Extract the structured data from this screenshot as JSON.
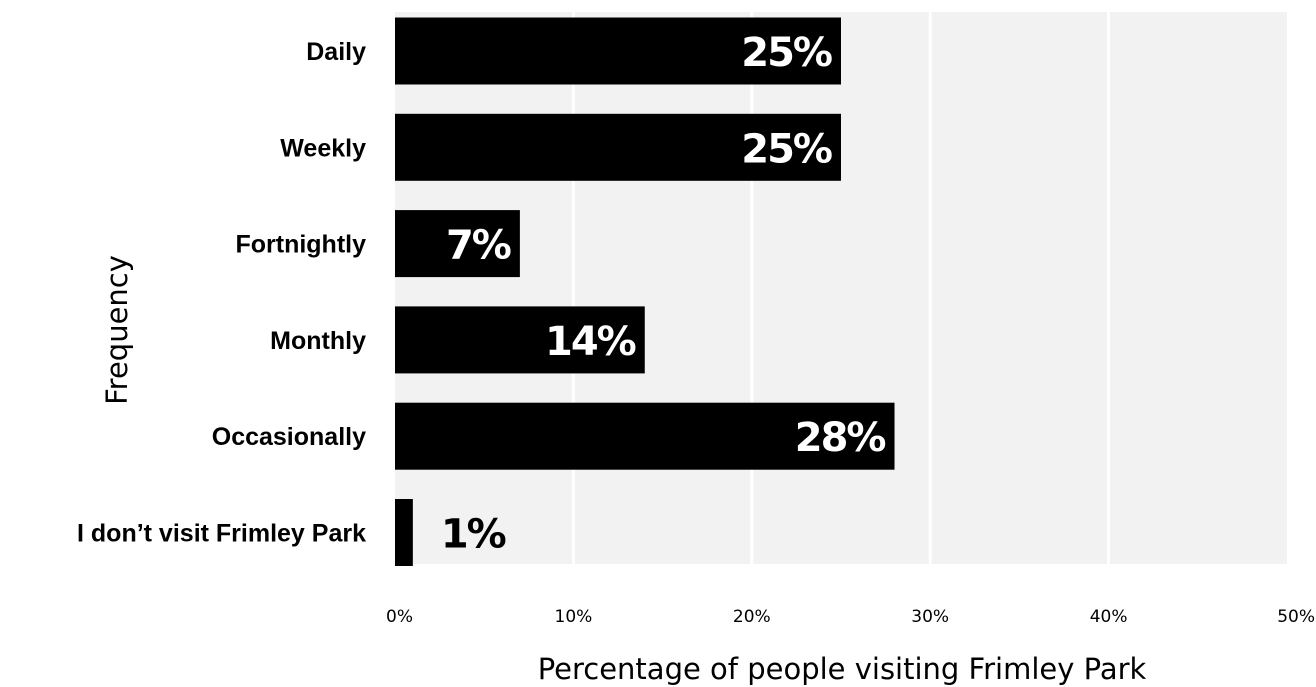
{
  "chart_data": {
    "type": "bar",
    "orientation": "horizontal",
    "categories": [
      "Daily",
      "Weekly",
      "Fortnightly",
      "Monthly",
      "Occasionally",
      "I don’t visit Frimley Park"
    ],
    "values": [
      25,
      25,
      7,
      14,
      28,
      1
    ],
    "value_labels": [
      "25%",
      "25%",
      "7%",
      "14%",
      "28%",
      "1%"
    ],
    "xlabel": "Percentage of people visiting Frimley Park",
    "ylabel": "Frequency",
    "xlim": [
      0,
      50
    ],
    "xticks": [
      0,
      10,
      20,
      30,
      40,
      50
    ],
    "xtick_labels": [
      "0%",
      "10%",
      "20%",
      "30%",
      "40%",
      "50%"
    ],
    "grid": true,
    "legend": "none",
    "colors": {
      "bar": "#000000",
      "panel_background": "#f2f2f2",
      "gridline": "#ffffff",
      "label_inside": "#ffffff",
      "label_outside": "#000000"
    }
  }
}
